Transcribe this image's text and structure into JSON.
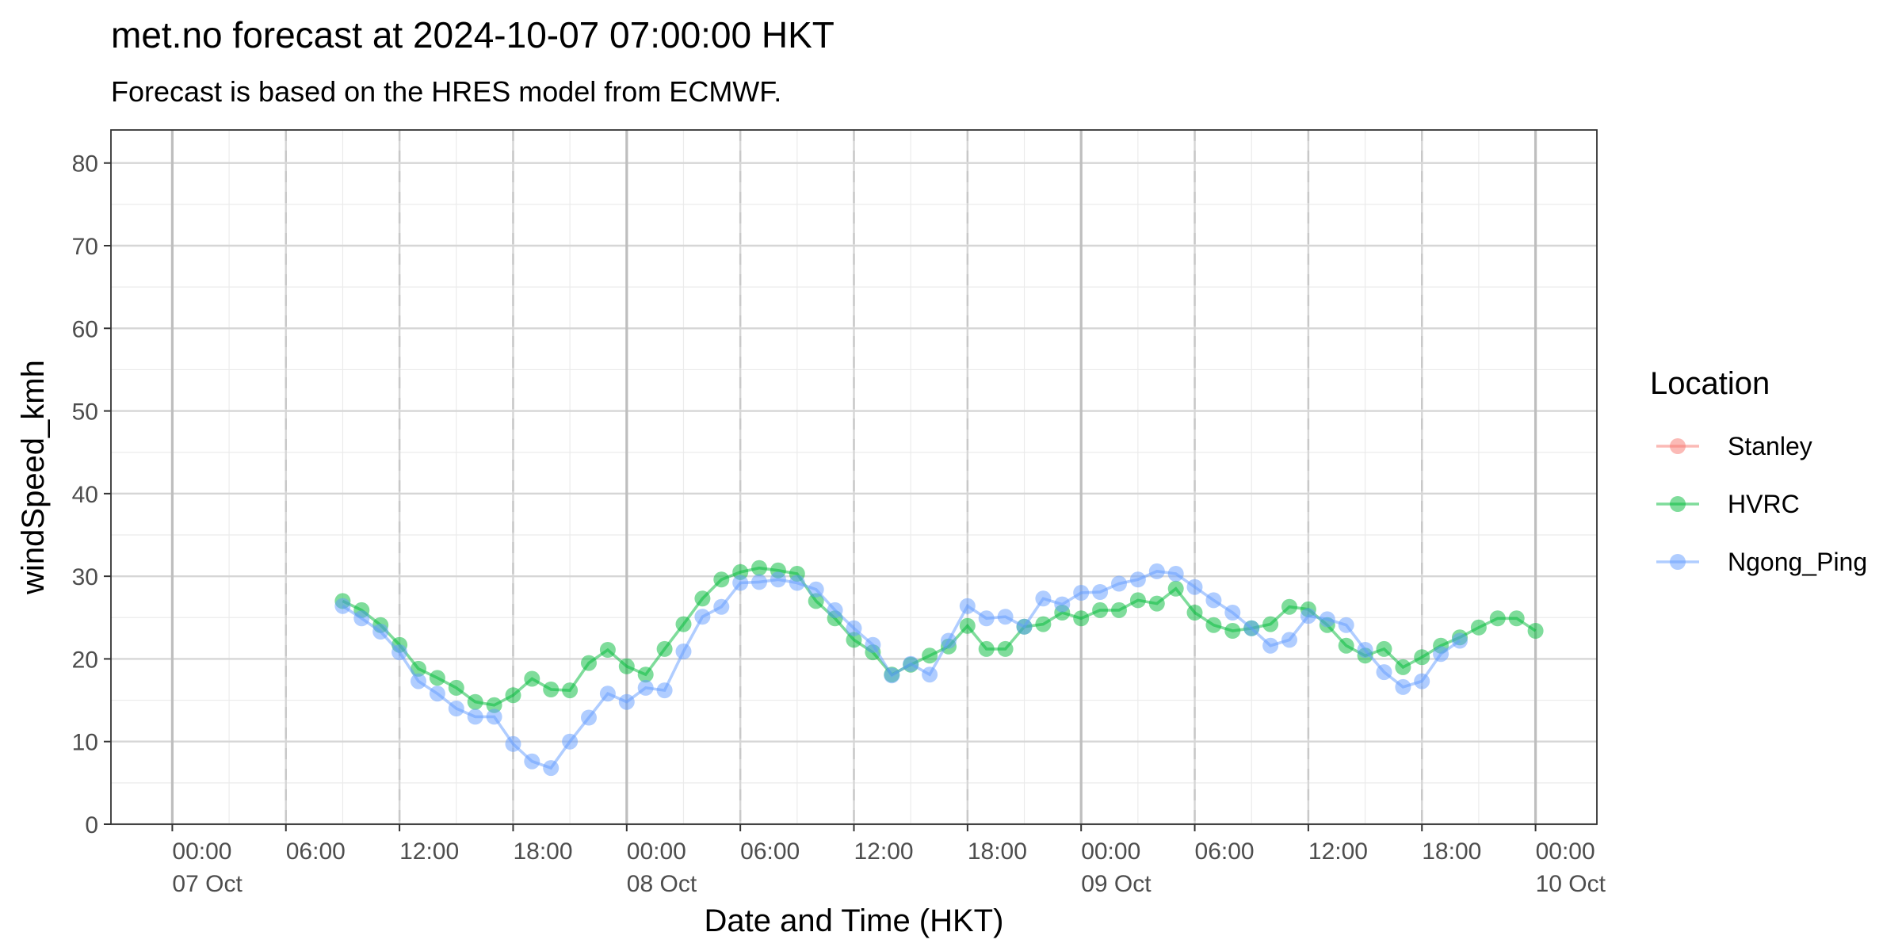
{
  "chart_data": {
    "type": "line",
    "title": "met.no forecast at 2024-10-07 07:00:00 HKT",
    "subtitle": "Forecast is based on the HRES model from ECMWF.",
    "xlabel": "Date and Time (HKT)",
    "ylabel": "windSpeed_kmh",
    "xlim": [
      "2024-10-07 00:00",
      "2024-10-10 00:00"
    ],
    "ylim": [
      0,
      84
    ],
    "x_ticks": [
      {
        "time": "2024-10-07 00:00",
        "label": "00:00",
        "sublabel": "07 Oct"
      },
      {
        "time": "2024-10-07 06:00",
        "label": "06:00",
        "sublabel": ""
      },
      {
        "time": "2024-10-07 12:00",
        "label": "12:00",
        "sublabel": ""
      },
      {
        "time": "2024-10-07 18:00",
        "label": "18:00",
        "sublabel": ""
      },
      {
        "time": "2024-10-08 00:00",
        "label": "00:00",
        "sublabel": "08 Oct"
      },
      {
        "time": "2024-10-08 06:00",
        "label": "06:00",
        "sublabel": ""
      },
      {
        "time": "2024-10-08 12:00",
        "label": "12:00",
        "sublabel": ""
      },
      {
        "time": "2024-10-08 18:00",
        "label": "18:00",
        "sublabel": ""
      },
      {
        "time": "2024-10-09 00:00",
        "label": "00:00",
        "sublabel": "09 Oct"
      },
      {
        "time": "2024-10-09 06:00",
        "label": "06:00",
        "sublabel": ""
      },
      {
        "time": "2024-10-09 12:00",
        "label": "12:00",
        "sublabel": ""
      },
      {
        "time": "2024-10-09 18:00",
        "label": "18:00",
        "sublabel": ""
      },
      {
        "time": "2024-10-10 00:00",
        "label": "00:00",
        "sublabel": "10 Oct"
      }
    ],
    "y_ticks": [
      0,
      10,
      20,
      30,
      40,
      50,
      60,
      70,
      80
    ],
    "grid": true,
    "legend": {
      "title": "Location",
      "position": "right"
    },
    "series": [
      {
        "name": "Stanley",
        "color": "#F8766D",
        "start": "2024-10-07 09:00",
        "interval_hours": 1,
        "values": []
      },
      {
        "name": "HVRC",
        "color": "#00BA38",
        "start": "2024-10-07 09:00",
        "interval_hours": 1,
        "values": [
          27.0,
          25.9,
          24.1,
          21.7,
          18.8,
          17.7,
          16.5,
          14.8,
          14.4,
          15.6,
          17.6,
          16.3,
          16.2,
          19.5,
          21.1,
          19.1,
          18.1,
          21.2,
          24.2,
          27.3,
          29.6,
          30.5,
          31.0,
          30.7,
          30.3,
          27.0,
          24.9,
          22.3,
          20.8,
          18.1,
          19.3,
          20.4,
          21.5,
          24.0,
          21.2,
          21.2,
          23.9,
          24.2,
          25.6,
          24.9,
          25.9,
          25.9,
          27.1,
          26.7,
          28.5,
          25.6,
          24.1,
          23.4,
          23.7,
          24.2,
          26.3,
          26.0,
          24.1,
          21.6,
          20.4,
          21.2,
          19.0,
          20.2,
          21.6,
          22.6,
          23.8,
          24.9,
          24.9,
          23.4
        ]
      },
      {
        "name": "Ngong_Ping",
        "color": "#619CFF",
        "start": "2024-10-07 09:00",
        "interval_hours": 1,
        "values": [
          26.4,
          24.9,
          23.3,
          20.8,
          17.3,
          15.8,
          14.0,
          13.0,
          13.0,
          9.7,
          7.6,
          6.8,
          10.0,
          12.9,
          15.8,
          14.8,
          16.5,
          16.2,
          20.9,
          25.1,
          26.3,
          29.2,
          29.3,
          29.6,
          29.2,
          28.4,
          25.9,
          23.7,
          21.7,
          18.0,
          19.4,
          18.1,
          22.2,
          26.4,
          24.9,
          25.1,
          23.9,
          27.3,
          26.6,
          28.0,
          28.1,
          29.1,
          29.6,
          30.6,
          30.3,
          28.7,
          27.1,
          25.6,
          23.7,
          21.6,
          22.3,
          25.2,
          24.8,
          24.1,
          21.1,
          18.4,
          16.6,
          17.3,
          20.6,
          22.2
        ]
      }
    ]
  }
}
